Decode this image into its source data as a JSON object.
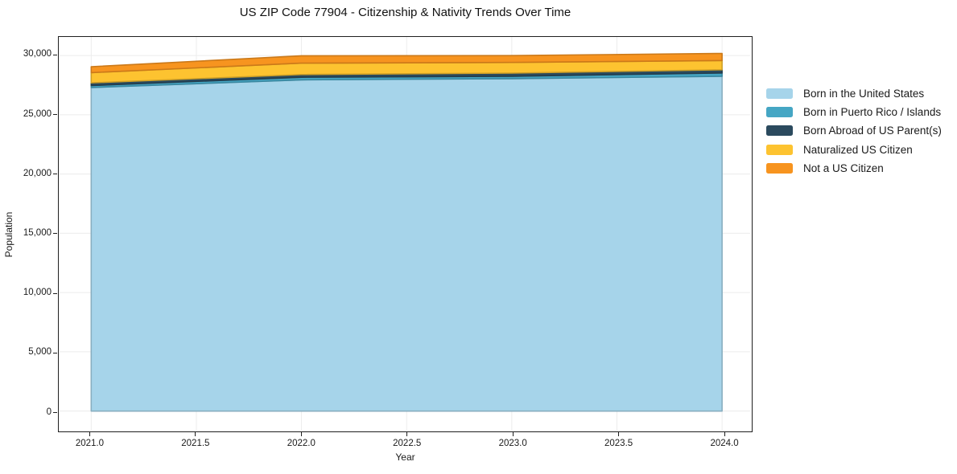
{
  "chart_data": {
    "type": "area",
    "stacked": true,
    "title": "US ZIP Code 77904 - Citizenship & Nativity Trends Over Time",
    "xlabel": "Year",
    "ylabel": "Population",
    "x": [
      2021,
      2022,
      2023,
      2024
    ],
    "series": [
      {
        "name": "Born in the United States",
        "color": "#a6d4ea",
        "values": [
          27300,
          27950,
          28050,
          28250
        ]
      },
      {
        "name": "Born in Puerto Rico / Islands",
        "color": "#45a6c4",
        "values": [
          170,
          220,
          200,
          280
        ]
      },
      {
        "name": "Born Abroad of US Parent(s)",
        "color": "#2b4a5e",
        "values": [
          230,
          230,
          270,
          270
        ]
      },
      {
        "name": "Naturalized US Citizen",
        "color": "#fdc330",
        "values": [
          860,
          960,
          900,
          780
        ]
      },
      {
        "name": "Not a US Citizen",
        "color": "#f7941f",
        "values": [
          500,
          620,
          580,
          600
        ]
      }
    ],
    "xlim": [
      2020.85,
      2024.133
    ],
    "ylim": [
      -1650,
      31570
    ],
    "xticks": [
      {
        "value": 2021.0,
        "label": "2021.0"
      },
      {
        "value": 2021.5,
        "label": "2021.5"
      },
      {
        "value": 2022.0,
        "label": "2022.0"
      },
      {
        "value": 2022.5,
        "label": "2022.5"
      },
      {
        "value": 2023.0,
        "label": "2023.0"
      },
      {
        "value": 2023.5,
        "label": "2023.5"
      },
      {
        "value": 2024.0,
        "label": "2024.0"
      }
    ],
    "yticks": [
      {
        "value": 0,
        "label": "0"
      },
      {
        "value": 5000,
        "label": "5,000"
      },
      {
        "value": 10000,
        "label": "10,000"
      },
      {
        "value": 15000,
        "label": "15,000"
      },
      {
        "value": 20000,
        "label": "20,000"
      },
      {
        "value": 25000,
        "label": "25,000"
      },
      {
        "value": 30000,
        "label": "30,000"
      }
    ],
    "grid": true,
    "legend_position": "right-outside"
  },
  "style": {
    "grid_color": "#ececec",
    "spine_color": "#1f1f1f",
    "background": "#ffffff",
    "text_color": "#1a1a1a"
  }
}
